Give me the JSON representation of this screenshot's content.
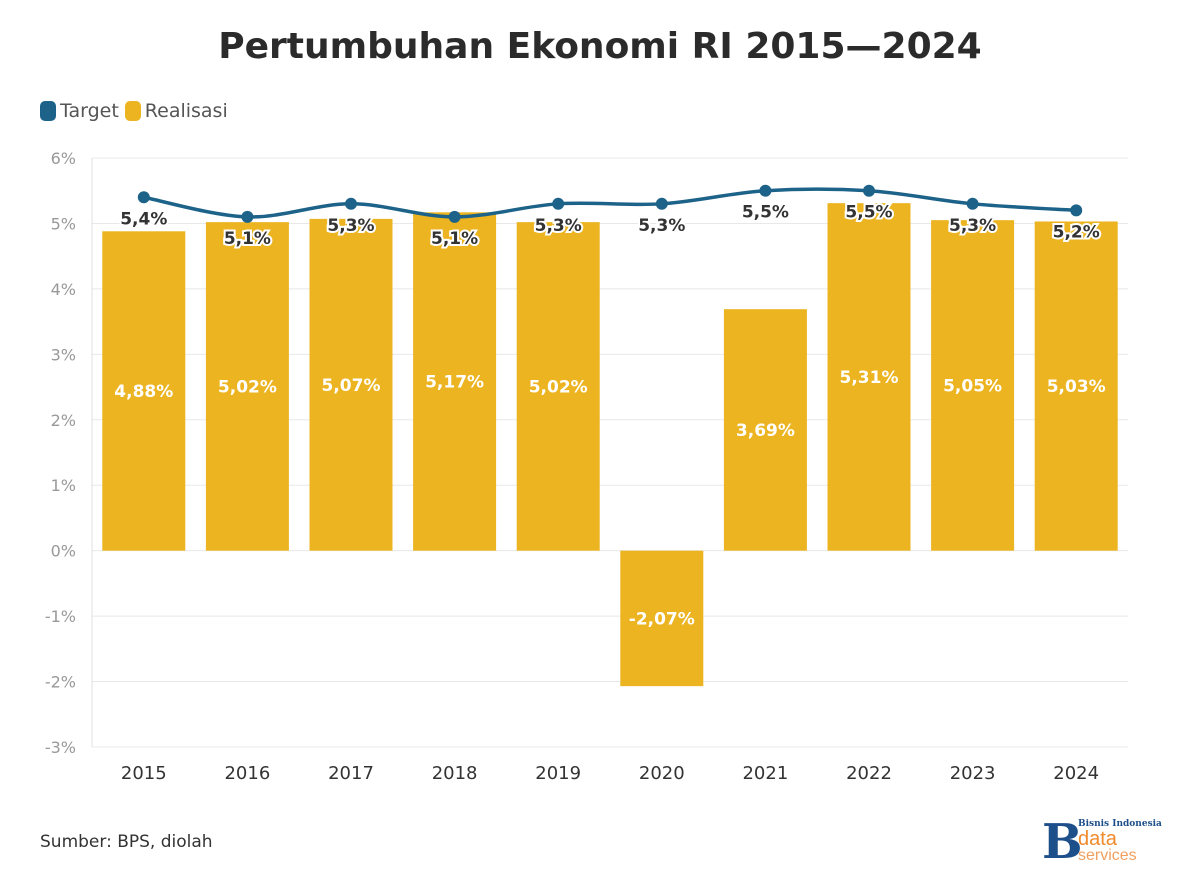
{
  "chart_data": {
    "type": "bar",
    "title": "Pertumbuhan Ekonomi RI 2015—2024",
    "categories": [
      "2015",
      "2016",
      "2017",
      "2018",
      "2019",
      "2020",
      "2021",
      "2022",
      "2023",
      "2024"
    ],
    "series": [
      {
        "name": "Target",
        "type": "line",
        "color": "#1d6389",
        "values": [
          5.4,
          5.1,
          5.3,
          5.1,
          5.3,
          5.3,
          5.5,
          5.5,
          5.3,
          5.2
        ],
        "labels": [
          "5,4%",
          "5,1%",
          "5,3%",
          "5,1%",
          "5,3%",
          "5,3%",
          "5,5%",
          "5,5%",
          "5,3%",
          "5,2%"
        ]
      },
      {
        "name": "Realisasi",
        "type": "bar",
        "color": "#ecb420",
        "values": [
          4.88,
          5.02,
          5.07,
          5.17,
          5.02,
          -2.07,
          3.69,
          5.31,
          5.05,
          5.03
        ],
        "labels": [
          "4,88%",
          "5,02%",
          "5,07%",
          "5,17%",
          "5,02%",
          "-2,07%",
          "3,69%",
          "5,31%",
          "5,05%",
          "5,03%"
        ]
      }
    ],
    "ylim": [
      -3,
      6
    ],
    "yticks": [
      "-3%",
      "-2%",
      "-1%",
      "0%",
      "1%",
      "2%",
      "3%",
      "4%",
      "5%",
      "6%"
    ],
    "ytick_values": [
      -3,
      -2,
      -1,
      0,
      1,
      2,
      3,
      4,
      5,
      6
    ],
    "grid": true,
    "legend_position": "top-left"
  },
  "legend": {
    "target": "Target",
    "realisasi": "Realisasi"
  },
  "source": "Sumber: BPS, diolah",
  "logo": {
    "line1": "Bisnis Indonesia",
    "line2": "data",
    "line3": "services"
  }
}
